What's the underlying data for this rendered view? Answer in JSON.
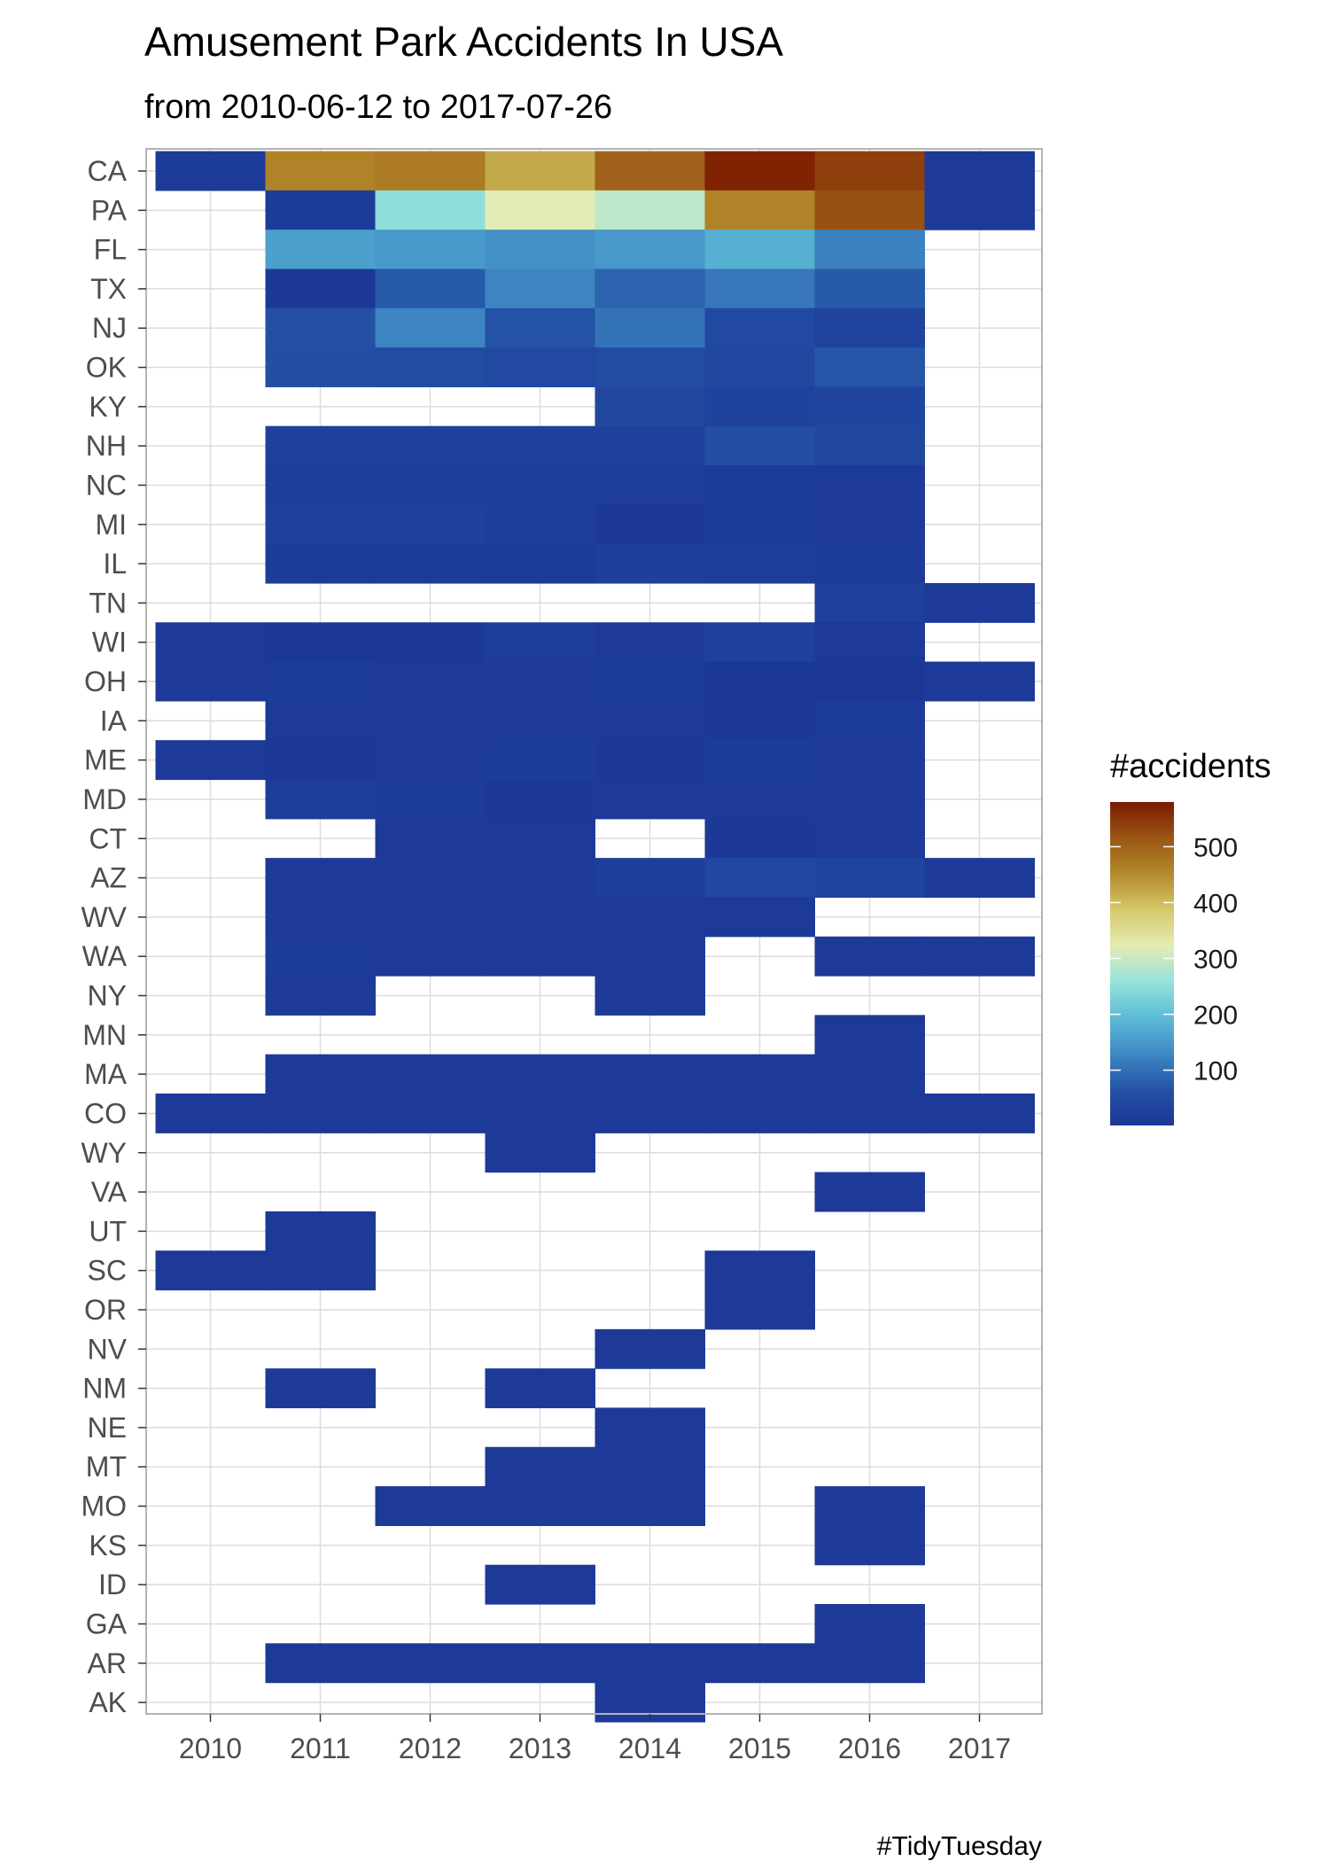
{
  "chart_data": {
    "type": "heatmap",
    "title": "Amusement Park Accidents In USA",
    "subtitle": "from 2010-06-12 to 2017-07-26",
    "caption": "#TidyTuesday",
    "xlabel": "",
    "ylabel": "",
    "grid": true,
    "x": [
      "2010",
      "2011",
      "2012",
      "2013",
      "2014",
      "2015",
      "2016",
      "2017"
    ],
    "y": [
      "CA",
      "PA",
      "FL",
      "TX",
      "NJ",
      "OK",
      "KY",
      "NH",
      "NC",
      "MI",
      "IL",
      "TN",
      "WI",
      "OH",
      "IA",
      "ME",
      "MD",
      "CT",
      "AZ",
      "WV",
      "WA",
      "NY",
      "MN",
      "MA",
      "CO",
      "WY",
      "VA",
      "UT",
      "SC",
      "OR",
      "NV",
      "NM",
      "NE",
      "MT",
      "MO",
      "KS",
      "ID",
      "GA",
      "AR",
      "AK"
    ],
    "values": [
      [
        10,
        460,
        470,
        420,
        500,
        570,
        540,
        8
      ],
      [
        null,
        10,
        250,
        320,
        290,
        460,
        520,
        8
      ],
      [
        null,
        160,
        150,
        140,
        150,
        180,
        120,
        null
      ],
      [
        null,
        5,
        75,
        125,
        85,
        110,
        75,
        null
      ],
      [
        null,
        60,
        125,
        65,
        105,
        45,
        30,
        null
      ],
      [
        null,
        55,
        50,
        45,
        50,
        40,
        70,
        null
      ],
      [
        null,
        null,
        null,
        null,
        38,
        28,
        35,
        null
      ],
      [
        null,
        25,
        22,
        23,
        25,
        55,
        38,
        null
      ],
      [
        null,
        15,
        14,
        18,
        14,
        10,
        8,
        null
      ],
      [
        null,
        25,
        24,
        18,
        6,
        10,
        8,
        null
      ],
      [
        null,
        12,
        12,
        10,
        20,
        16,
        12,
        null
      ],
      [
        null,
        null,
        null,
        null,
        null,
        null,
        24,
        8
      ],
      [
        8,
        4,
        6,
        15,
        8,
        22,
        8,
        null
      ],
      [
        8,
        10,
        8,
        8,
        12,
        4,
        4,
        8
      ],
      [
        null,
        8,
        7,
        8,
        8,
        6,
        12,
        null
      ],
      [
        8,
        6,
        8,
        10,
        6,
        10,
        8,
        null
      ],
      [
        null,
        16,
        10,
        6,
        8,
        8,
        8,
        null
      ],
      [
        null,
        null,
        8,
        8,
        null,
        6,
        8,
        null
      ],
      [
        null,
        8,
        8,
        8,
        18,
        40,
        35,
        8
      ],
      [
        null,
        8,
        8,
        8,
        8,
        8,
        null,
        null
      ],
      [
        null,
        12,
        8,
        8,
        8,
        null,
        8,
        8
      ],
      [
        null,
        8,
        null,
        null,
        8,
        null,
        null,
        null
      ],
      [
        null,
        null,
        null,
        null,
        null,
        null,
        8,
        null
      ],
      [
        null,
        8,
        8,
        8,
        8,
        8,
        8,
        null
      ],
      [
        8,
        8,
        8,
        8,
        8,
        8,
        8,
        8
      ],
      [
        null,
        null,
        null,
        8,
        null,
        null,
        null,
        null
      ],
      [
        null,
        null,
        null,
        null,
        null,
        null,
        8,
        null
      ],
      [
        null,
        8,
        null,
        null,
        null,
        null,
        null,
        null
      ],
      [
        8,
        8,
        null,
        null,
        null,
        8,
        null,
        null
      ],
      [
        null,
        null,
        null,
        null,
        null,
        8,
        null,
        null
      ],
      [
        null,
        null,
        null,
        null,
        8,
        null,
        null,
        null
      ],
      [
        null,
        8,
        null,
        8,
        null,
        null,
        null,
        null
      ],
      [
        null,
        null,
        null,
        null,
        8,
        null,
        null,
        null
      ],
      [
        null,
        null,
        null,
        8,
        8,
        null,
        null,
        null
      ],
      [
        null,
        null,
        8,
        8,
        8,
        null,
        8,
        null
      ],
      [
        null,
        null,
        null,
        null,
        null,
        null,
        8,
        null
      ],
      [
        null,
        null,
        null,
        8,
        null,
        null,
        null,
        null
      ],
      [
        null,
        null,
        null,
        null,
        null,
        null,
        8,
        null
      ],
      [
        null,
        8,
        8,
        8,
        8,
        8,
        8,
        null
      ],
      [
        null,
        null,
        null,
        null,
        8,
        null,
        null,
        null
      ]
    ],
    "legend": {
      "title": "#accidents",
      "ticks": [
        100,
        200,
        300,
        400,
        500
      ],
      "range": [
        1,
        580
      ],
      "colors": [
        "#1c3796",
        "#2452a6",
        "#3f88c3",
        "#5bbbd6",
        "#96e3db",
        "#e6ebb4",
        "#d4c96a",
        "#b38a2b",
        "#9a5514",
        "#7a1a00"
      ]
    }
  }
}
